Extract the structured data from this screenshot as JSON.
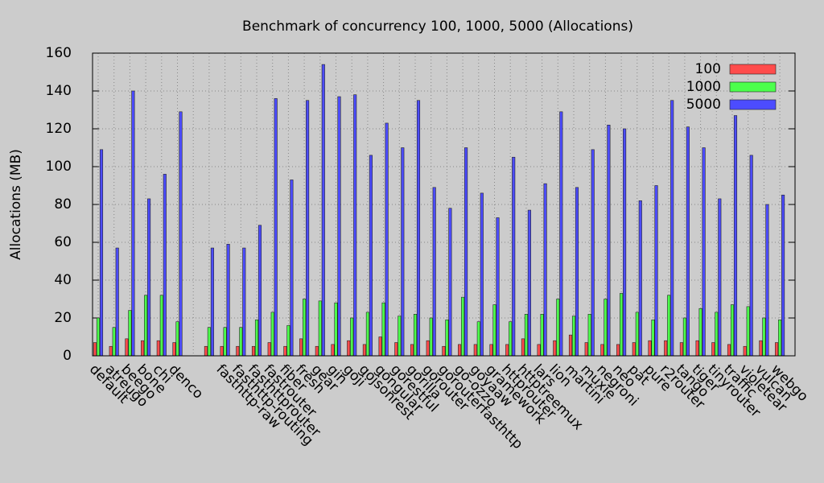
{
  "chart_data": {
    "type": "bar",
    "title": "Benchmark of concurrency 100, 1000, 5000 (Allocations)",
    "y_label": "Allocations (MB)",
    "categories": [
      "default",
      "atreugo",
      "beego",
      "bone",
      "chi",
      "denco",
      null,
      null,
      "fasthttp-raw",
      "fasthttp-routing",
      "fasthttprouter",
      "fastrouter",
      "fiber",
      "fresh",
      "gear",
      "gin",
      "goji",
      "gojsonrest",
      "gongular",
      "gorestful",
      "gorilla",
      "gorouter",
      "gorouterfasthttp",
      "go-ozzo",
      "goyaaw",
      "gramework",
      "httprouter",
      "httptreemux",
      "lars",
      "lion",
      "martini",
      "muxie",
      "negroni",
      "neo",
      "pat",
      "pure",
      "r2router",
      "tango",
      "tiger",
      "tinyrouter",
      "traffic",
      "violetear",
      "vulcan",
      "webgo"
    ],
    "series": [
      {
        "name": "100",
        "color": "#ff4c4c",
        "values": [
          7,
          5,
          9,
          8,
          8,
          7,
          null,
          5,
          5,
          5,
          5,
          7,
          5,
          9,
          5,
          6,
          8,
          6,
          10,
          7,
          6,
          8,
          5,
          6,
          6,
          6,
          6,
          9,
          6,
          8,
          11,
          7,
          6,
          6,
          7,
          8,
          8,
          7,
          8,
          7,
          6,
          5,
          8,
          7
        ]
      },
      {
        "name": "1000",
        "color": "#4cff4c",
        "values": [
          20,
          15,
          24,
          32,
          32,
          18,
          null,
          15,
          15,
          15,
          19,
          23,
          16,
          30,
          29,
          28,
          20,
          23,
          28,
          21,
          22,
          20,
          19,
          31,
          18,
          27,
          18,
          22,
          22,
          30,
          21,
          22,
          30,
          33,
          23,
          19,
          32,
          20,
          25,
          23,
          27,
          26,
          20,
          19
        ]
      },
      {
        "name": "5000",
        "color": "#4c4cff",
        "values": [
          109,
          57,
          140,
          83,
          96,
          129,
          null,
          57,
          59,
          57,
          69,
          136,
          93,
          135,
          154,
          137,
          138,
          106,
          123,
          110,
          135,
          89,
          78,
          110,
          86,
          73,
          105,
          77,
          91,
          129,
          89,
          109,
          122,
          120,
          82,
          90,
          135,
          121,
          110,
          83,
          127,
          106,
          80,
          85
        ]
      }
    ],
    "ylim": [
      0,
      160
    ],
    "yticks": [
      0,
      20,
      40,
      60,
      80,
      100,
      120,
      140,
      160
    ],
    "grid": true,
    "legend": "top-right"
  }
}
